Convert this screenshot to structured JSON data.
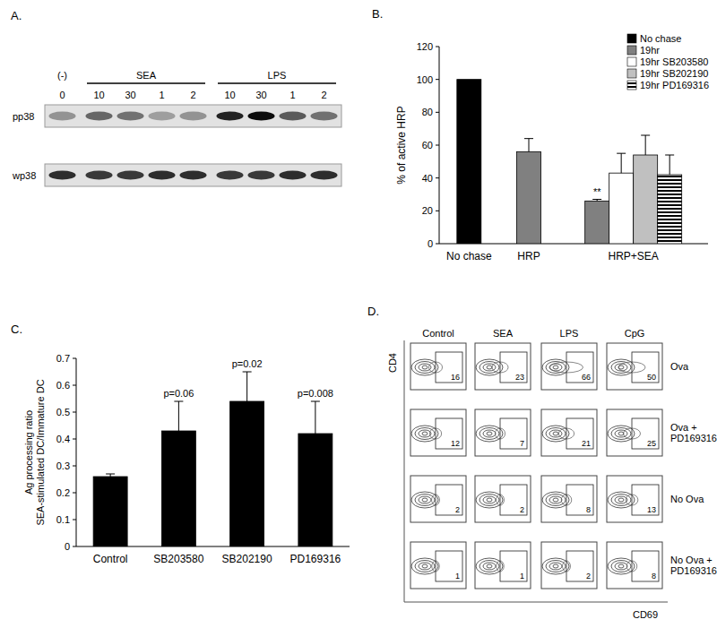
{
  "blot": {
    "title": "A.",
    "groups": [
      {
        "label": "(-)",
        "lanes": [
          "0"
        ]
      },
      {
        "label": "SEA",
        "lanes": [
          "10",
          "30",
          "1",
          "2"
        ]
      },
      {
        "label": "LPS",
        "lanes": [
          "10",
          "30",
          "1",
          "2"
        ]
      }
    ],
    "rows": [
      {
        "label": "pp38",
        "intensity": [
          0.35,
          0.55,
          0.5,
          0.3,
          0.35,
          0.85,
          0.95,
          0.6,
          0.5
        ]
      },
      {
        "label": "wp38",
        "intensity": [
          0.8,
          0.75,
          0.75,
          0.8,
          0.8,
          0.75,
          0.75,
          0.8,
          0.8
        ]
      }
    ]
  },
  "chart_data": [
    {
      "type": "bar",
      "title": "B.",
      "y_label": "% of active HRP",
      "categories": [
        "No chase",
        "HRP",
        "HRP+SEA"
      ],
      "ylim": [
        0,
        120
      ],
      "yticks": [
        0,
        20,
        40,
        60,
        80,
        100,
        120
      ],
      "grid": false,
      "legend": "top-right",
      "series": [
        {
          "name": "No chase",
          "color": "#000000",
          "values": [
            100,
            null,
            null
          ],
          "errors": [
            null,
            null,
            null
          ]
        },
        {
          "name": "19hr",
          "color": "#808080",
          "values": [
            null,
            56,
            26
          ],
          "errors": [
            null,
            8,
            1
          ]
        },
        {
          "name": "19hr SB203580",
          "color": "#ffffff",
          "values": [
            null,
            null,
            43
          ],
          "errors": [
            null,
            null,
            12
          ]
        },
        {
          "name": "19hr SB202190",
          "color": "#c0c0c0",
          "values": [
            null,
            null,
            54
          ],
          "errors": [
            null,
            null,
            12
          ]
        },
        {
          "name": "19hr PD169316",
          "color": "#000000",
          "line_style": "striped",
          "values": [
            null,
            null,
            42
          ],
          "errors": [
            null,
            null,
            12
          ]
        }
      ],
      "annotations": [
        {
          "text": "**",
          "series": "19hr",
          "category": "HRP+SEA"
        }
      ]
    },
    {
      "type": "bar",
      "title": "C.",
      "y_label": [
        "Ag processing ratio",
        "SEA-stimulated DC/Immature DC"
      ],
      "categories": [
        "Control",
        "SB203580",
        "SB202190",
        "PD169316"
      ],
      "values": [
        0.26,
        0.43,
        0.54,
        0.42
      ],
      "errors": [
        0.01,
        0.11,
        0.11,
        0.12
      ],
      "color": "#000000",
      "ylim": [
        0,
        0.7
      ],
      "yticks": [
        0,
        0.1,
        0.2,
        0.3,
        0.4,
        0.5,
        0.6,
        0.7
      ],
      "grid": false,
      "annotations": [
        {
          "text": "p=0.06",
          "category": "SB203580"
        },
        {
          "text": "p=0.02",
          "category": "SB202190"
        },
        {
          "text": "p=0.008",
          "category": "PD169316"
        }
      ]
    }
  ],
  "flow": {
    "title": "D.",
    "x_label": "CD69",
    "y_label": "CD4",
    "columns": [
      "Control",
      "SEA",
      "LPS",
      "CpG"
    ],
    "rows": [
      {
        "label": [
          "Ova"
        ],
        "values": [
          16,
          23,
          66,
          50
        ]
      },
      {
        "label": [
          "Ova +",
          "PD169316"
        ],
        "values": [
          12,
          7,
          21,
          25
        ]
      },
      {
        "label": [
          "No Ova"
        ],
        "values": [
          2,
          2,
          8,
          13
        ]
      },
      {
        "label": [
          "No Ova +",
          "PD169316"
        ],
        "values": [
          1,
          1,
          2,
          8
        ]
      }
    ]
  }
}
